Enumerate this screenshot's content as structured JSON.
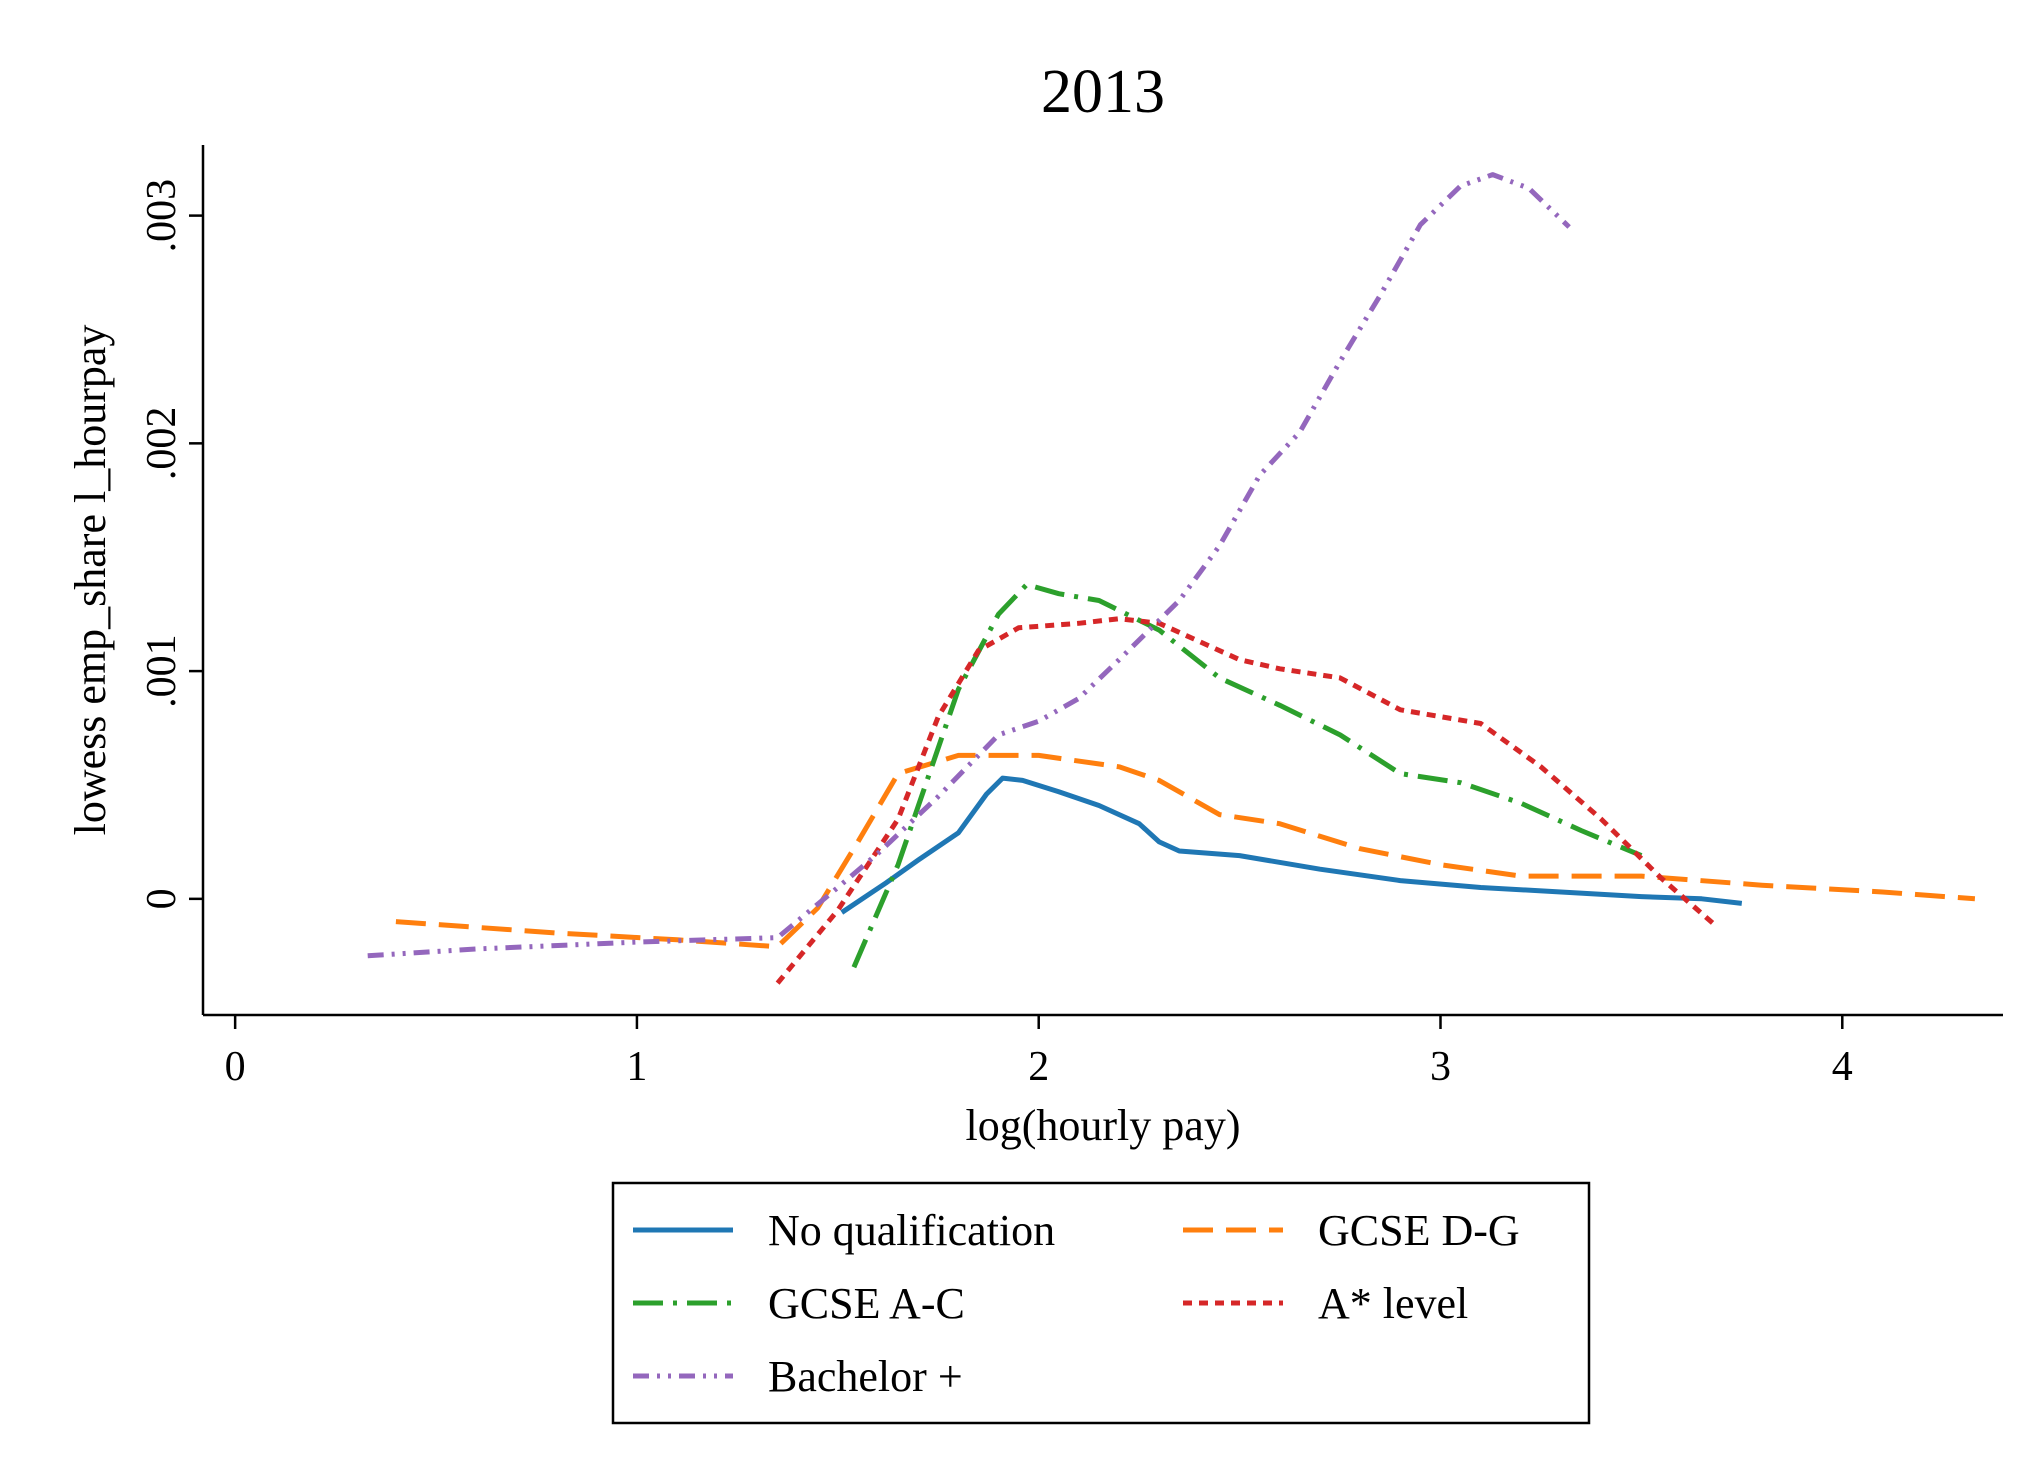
{
  "chart_data": {
    "type": "line",
    "title": "2013",
    "xlabel": "log(hourly pay)",
    "ylabel": "lowess emp_share l_hourpay",
    "xlim": [
      -0.08,
      4.4
    ],
    "ylim": [
      -0.00051,
      0.00331
    ],
    "x_ticks": [
      {
        "value": 0,
        "label": "0"
      },
      {
        "value": 1,
        "label": "1"
      },
      {
        "value": 2,
        "label": "2"
      },
      {
        "value": 3,
        "label": "3"
      },
      {
        "value": 4,
        "label": "4"
      }
    ],
    "y_ticks": [
      {
        "value": 0,
        "label": "0"
      },
      {
        "value": 0.001,
        "label": ".001"
      },
      {
        "value": 0.002,
        "label": ".002"
      },
      {
        "value": 0.003,
        "label": ".003"
      }
    ],
    "grid": false,
    "legend_position": "bottom",
    "series": [
      {
        "name": "No qualification",
        "color": "#1f77b4",
        "dash": "solid",
        "points": [
          [
            1.51,
            -6e-05
          ],
          [
            1.62,
            7e-05
          ],
          [
            1.7,
            0.00017
          ],
          [
            1.8,
            0.00029
          ],
          [
            1.87,
            0.00046
          ],
          [
            1.91,
            0.00053
          ],
          [
            1.96,
            0.00052
          ],
          [
            2.05,
            0.00047
          ],
          [
            2.15,
            0.00041
          ],
          [
            2.25,
            0.00033
          ],
          [
            2.3,
            0.00025
          ],
          [
            2.35,
            0.00021
          ],
          [
            2.5,
            0.00019
          ],
          [
            2.7,
            0.00013
          ],
          [
            2.9,
            8e-05
          ],
          [
            3.1,
            5e-05
          ],
          [
            3.3,
            3e-05
          ],
          [
            3.5,
            1e-05
          ],
          [
            3.65,
            0.0
          ],
          [
            3.75,
            -2e-05
          ]
        ]
      },
      {
        "name": "GCSE D-G",
        "color": "#ff7f0e",
        "dash": "long-dash",
        "points": [
          [
            0.4,
            -0.0001
          ],
          [
            0.8,
            -0.00015
          ],
          [
            1.1,
            -0.00018
          ],
          [
            1.35,
            -0.00021
          ],
          [
            1.45,
            -4e-05
          ],
          [
            1.55,
            0.00025
          ],
          [
            1.65,
            0.00055
          ],
          [
            1.8,
            0.00063
          ],
          [
            2.0,
            0.00063
          ],
          [
            2.2,
            0.00058
          ],
          [
            2.3,
            0.00052
          ],
          [
            2.45,
            0.00037
          ],
          [
            2.6,
            0.00033
          ],
          [
            2.8,
            0.00022
          ],
          [
            3.0,
            0.00015
          ],
          [
            3.2,
            0.0001
          ],
          [
            3.5,
            0.0001
          ],
          [
            3.8,
            6e-05
          ],
          [
            4.1,
            3e-05
          ],
          [
            4.33,
            0.0
          ]
        ]
      },
      {
        "name": "GCSE A-C",
        "color": "#2ca02c",
        "dash": "dash-dot",
        "points": [
          [
            1.54,
            -0.0003
          ],
          [
            1.65,
            0.00015
          ],
          [
            1.8,
            0.00092
          ],
          [
            1.9,
            0.00125
          ],
          [
            1.97,
            0.00138
          ],
          [
            2.05,
            0.00134
          ],
          [
            2.15,
            0.00131
          ],
          [
            2.3,
            0.00118
          ],
          [
            2.45,
            0.00097
          ],
          [
            2.6,
            0.00085
          ],
          [
            2.75,
            0.00072
          ],
          [
            2.9,
            0.00055
          ],
          [
            3.05,
            0.00051
          ],
          [
            3.2,
            0.00042
          ],
          [
            3.35,
            0.0003
          ],
          [
            3.5,
            0.00019
          ]
        ]
      },
      {
        "name": "A* level",
        "color": "#d62728",
        "dash": "dotted",
        "points": [
          [
            1.35,
            -0.00037
          ],
          [
            1.5,
            -5e-05
          ],
          [
            1.65,
            0.00035
          ],
          [
            1.75,
            0.0008
          ],
          [
            1.85,
            0.00109
          ],
          [
            1.95,
            0.00119
          ],
          [
            2.1,
            0.00121
          ],
          [
            2.2,
            0.00123
          ],
          [
            2.3,
            0.00121
          ],
          [
            2.4,
            0.00113
          ],
          [
            2.5,
            0.00105
          ],
          [
            2.6,
            0.00101
          ],
          [
            2.75,
            0.00097
          ],
          [
            2.9,
            0.00083
          ],
          [
            3.1,
            0.00077
          ],
          [
            3.25,
            0.00058
          ],
          [
            3.4,
            0.00035
          ],
          [
            3.55,
            9e-05
          ],
          [
            3.68,
            -0.00011
          ]
        ]
      },
      {
        "name": "Bachelor +",
        "color": "#9467bd",
        "dash": "dash-dot-dot",
        "points": [
          [
            0.33,
            -0.00025
          ],
          [
            0.6,
            -0.00022
          ],
          [
            1.0,
            -0.00019
          ],
          [
            1.35,
            -0.00017
          ],
          [
            1.5,
            5e-05
          ],
          [
            1.6,
            0.0002
          ],
          [
            1.75,
            0.00045
          ],
          [
            1.9,
            0.00072
          ],
          [
            2.0,
            0.00078
          ],
          [
            2.1,
            0.00088
          ],
          [
            2.2,
            0.00105
          ],
          [
            2.35,
            0.00131
          ],
          [
            2.45,
            0.00155
          ],
          [
            2.55,
            0.00186
          ],
          [
            2.65,
            0.00205
          ],
          [
            2.75,
            0.00236
          ],
          [
            2.85,
            0.00265
          ],
          [
            2.95,
            0.00296
          ],
          [
            3.05,
            0.00313
          ],
          [
            3.13,
            0.00318
          ],
          [
            3.22,
            0.00312
          ],
          [
            3.32,
            0.00295
          ]
        ]
      }
    ]
  }
}
